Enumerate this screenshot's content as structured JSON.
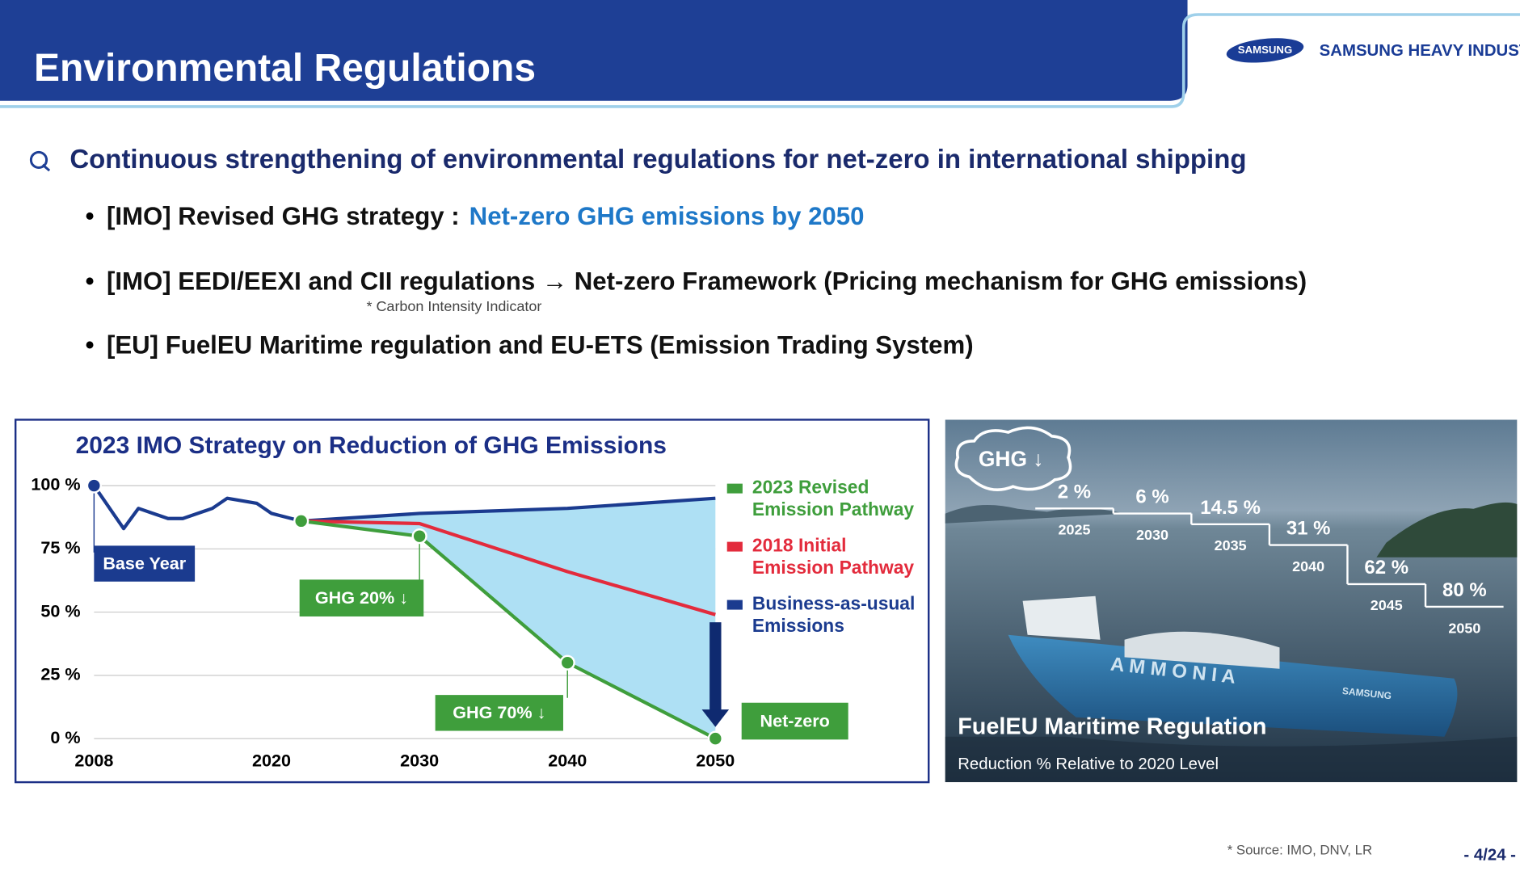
{
  "header": {
    "title": "Environmental Regulations",
    "logo": "SAMSUNG",
    "company": "SAMSUNG HEAVY INDUSTRIES"
  },
  "headline": "Continuous strengthening of environmental regulations for net-zero in international shipping",
  "bullets": [
    {
      "text": "[IMO] Revised GHG strategy :",
      "highlight": "Net-zero GHG emissions by 2050"
    },
    {
      "text": "[IMO] EEDI/EEXI and CII regulations →  Net-zero Framework (Pricing mechanism for GHG emissions)",
      "note": "* Carbon Intensity Indicator"
    },
    {
      "text": "[EU] FuelEU Maritime regulation and EU-ETS (Emission Trading System)"
    }
  ],
  "chart_data": {
    "type": "line",
    "title": "2023 IMO Strategy on Reduction of GHG Emissions",
    "xlim": [
      2008,
      2050
    ],
    "ylim": [
      0,
      100
    ],
    "xticks": [
      2008,
      2020,
      2030,
      2040,
      2050
    ],
    "yticks": [
      {
        "value": 0,
        "label": "0 %"
      },
      {
        "value": 25,
        "label": "25 %"
      },
      {
        "value": 50,
        "label": "50 %"
      },
      {
        "value": 75,
        "label": "75 %"
      },
      {
        "value": 100,
        "label": "100 %"
      }
    ],
    "grid": true,
    "fill_between_color": "#aee0f4",
    "series": [
      {
        "name": "2023 Revised Emission Pathway",
        "color": "#3f9e3c",
        "markers": "all",
        "x": [
          2022,
          2030,
          2040,
          2050
        ],
        "values": [
          86,
          80,
          30,
          0
        ]
      },
      {
        "name": "2018 Initial Emission Pathway",
        "color": "#e32b3c",
        "markers": "none",
        "x": [
          2022,
          2030,
          2040,
          2050
        ],
        "values": [
          86,
          85,
          66,
          49
        ]
      },
      {
        "name": "Business-as-usual Emissions",
        "color": "#1b3b8f",
        "markers": "first",
        "x": [
          2008,
          2010,
          2011,
          2012,
          2013,
          2014,
          2016,
          2017,
          2019,
          2020,
          2022,
          2030,
          2040,
          2050
        ],
        "values": [
          100,
          83,
          91,
          89,
          87,
          87,
          91,
          95,
          93,
          89,
          86,
          89,
          91,
          95
        ]
      }
    ],
    "annotations": [
      "Base Year",
      "GHG 20% ↓",
      "GHG 70% ↓",
      "Net-zero"
    ]
  },
  "fueleu": {
    "badge": "GHG ↓",
    "title": "FuelEU Maritime Regulation",
    "subtitle": "Reduction % Relative to 2020 Level",
    "years": [
      "2025",
      "2030",
      "2035",
      "2040",
      "2045",
      "2050"
    ],
    "values": [
      2,
      6,
      14.5,
      31,
      62,
      80
    ],
    "value_labels": [
      "2 %",
      "6 %",
      "14.5 %",
      "31 %",
      "62 %",
      "80 %"
    ],
    "ship_name": "A M M O N I A",
    "ship_brand": "SAMSUNG"
  },
  "source": "* Source: IMO, DNV, LR",
  "page": "- 4/24 -"
}
